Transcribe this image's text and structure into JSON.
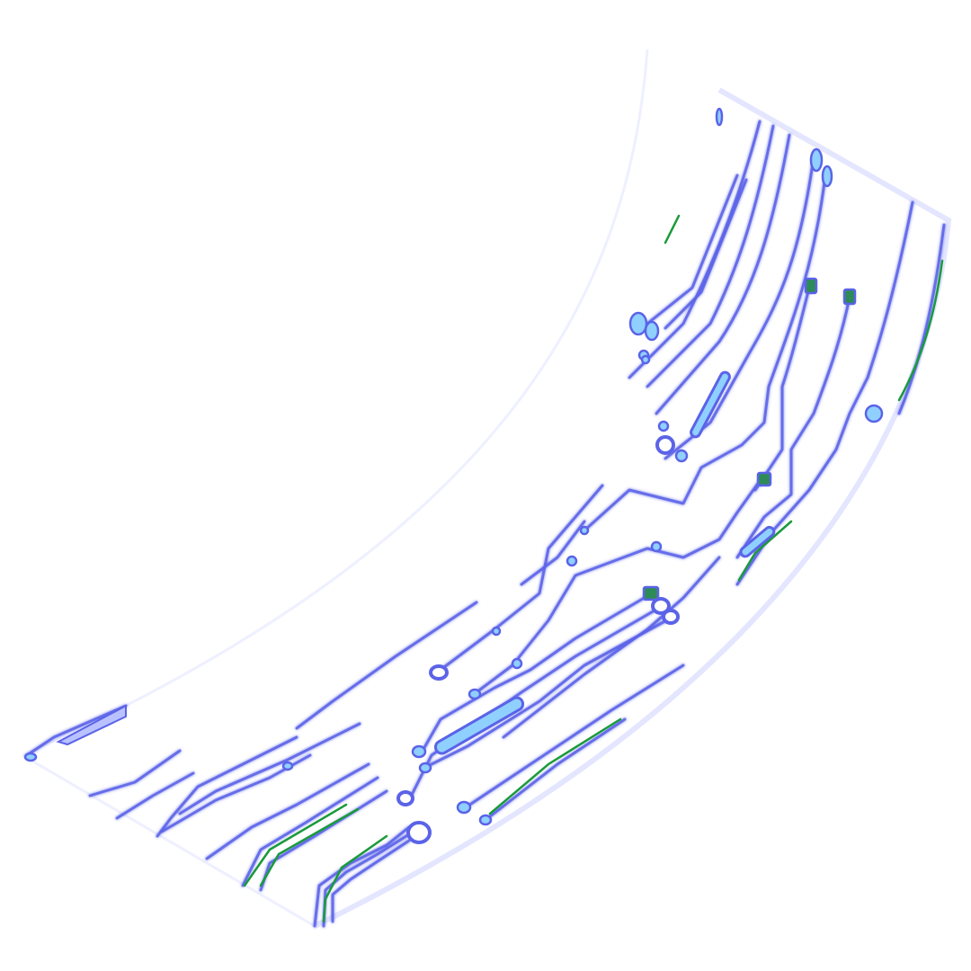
{
  "artwork": {
    "kind": "circuit-board-traces",
    "colors": {
      "background": "#ffffff",
      "trace_glow": "#c9ccff",
      "trace_core": "#5b63e8",
      "pad_fill": "#8fd0ff",
      "pad_fill_dark": "#2e8b57",
      "accent_green": "#1a9a3a",
      "edge_glow": "#e4e6ff"
    }
  }
}
